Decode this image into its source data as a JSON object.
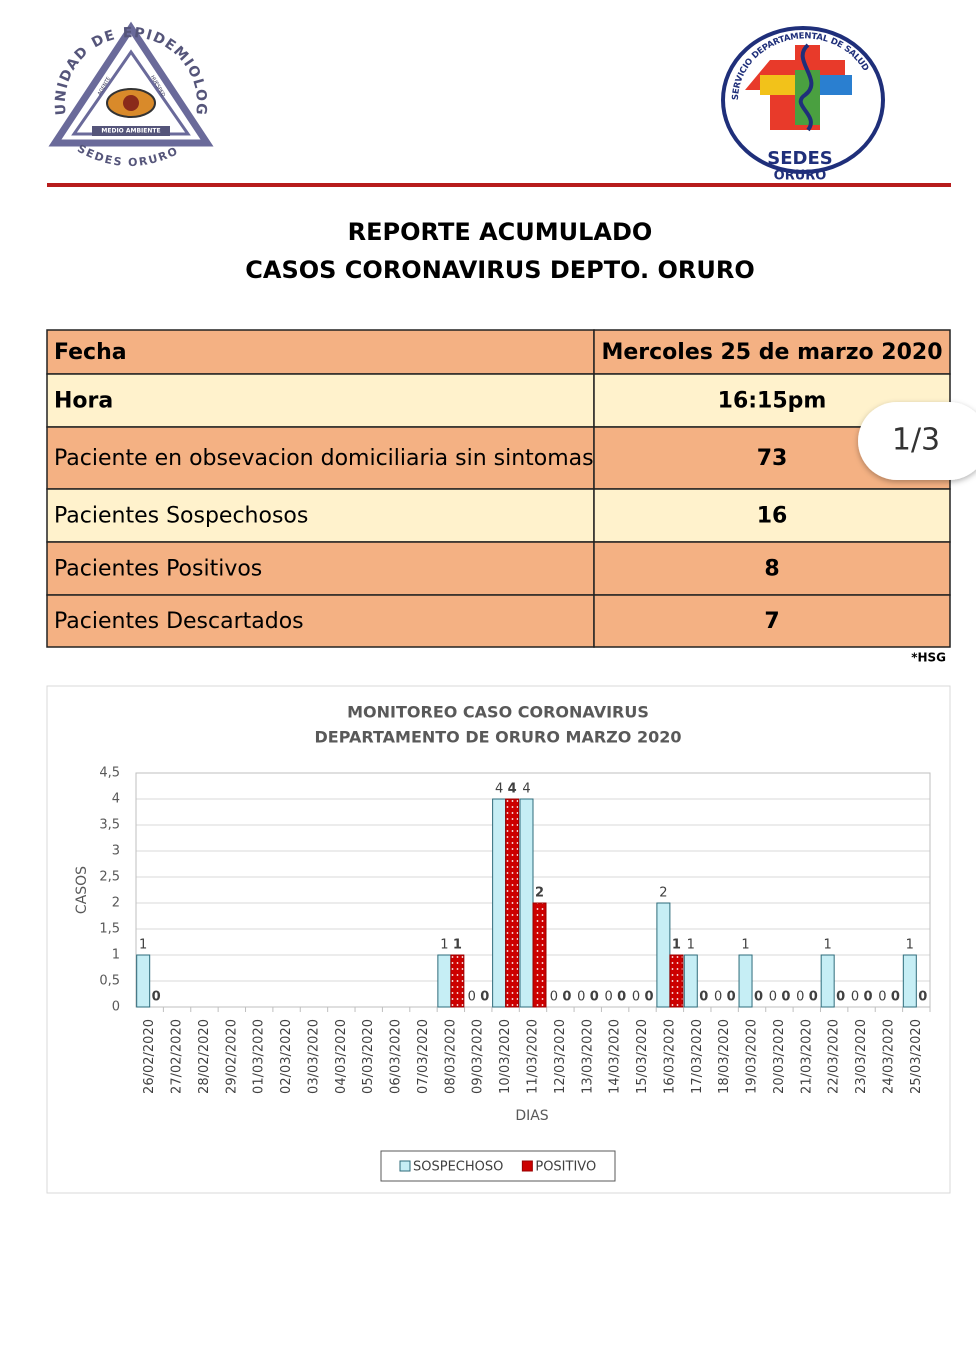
{
  "header": {
    "left_logo": {
      "ring_text": "UNIDAD DE EPIDEMIOLOGIA",
      "bottom_text": "SEDES ORURO",
      "band_text": "MEDIO AMBIENTE",
      "left_side": "AGENTE",
      "right_side": "HUESPED"
    },
    "right_logo": {
      "ring_text": "SERVICIO DEPARTAMENTAL DE SALUD",
      "name": "SEDES",
      "city": "ORURO"
    }
  },
  "title": [
    "REPORTE ACUMULADO",
    "CASOS CORONAVIRUS DEPTO. ORURO"
  ],
  "table": {
    "rows": [
      [
        "Fecha",
        "Mercoles 25 de marzo 2020"
      ],
      [
        "Hora",
        "16:15pm"
      ],
      [
        "Paciente en obsevacion domiciliaria sin sintomas",
        73
      ],
      [
        "Pacientes Sospechosos",
        16
      ],
      [
        "Pacientes Positivos",
        8
      ],
      [
        "Pacientes Descartados",
        7
      ]
    ]
  },
  "footnote": "*HSG",
  "page_indicator": "1/3",
  "chart_data": {
    "type": "bar",
    "title": "MONITOREO CASO CORONAVIRUS",
    "subtitle": "DEPARTAMENTO DE ORURO MARZO 2020",
    "x_label": "DIAS",
    "y_label": "CASOS",
    "categories": [
      "26/02/2020",
      "27/02/2020",
      "28/02/2020",
      "29/02/2020",
      "01/03/2020",
      "02/03/2020",
      "03/03/2020",
      "04/03/2020",
      "05/03/2020",
      "06/03/2020",
      "07/03/2020",
      "08/03/2020",
      "09/03/2020",
      "10/03/2020",
      "11/03/2020",
      "12/03/2020",
      "13/03/2020",
      "14/03/2020",
      "15/03/2020",
      "16/03/2020",
      "17/03/2020",
      "18/03/2020",
      "19/03/2020",
      "20/03/2020",
      "21/03/2020",
      "22/03/2020",
      "23/03/2020",
      "24/03/2020",
      "25/03/2020"
    ],
    "series": [
      {
        "name": "SOSPECHOSO",
        "color": "#c6eef5",
        "values": [
          1,
          null,
          null,
          null,
          null,
          null,
          null,
          null,
          null,
          null,
          null,
          1,
          0,
          4,
          4,
          0,
          0,
          0,
          0,
          2,
          1,
          0,
          1,
          0,
          0,
          1,
          0,
          0,
          1
        ]
      },
      {
        "name": "POSITIVO",
        "color": "#cc0000",
        "values": [
          0,
          null,
          null,
          null,
          null,
          null,
          null,
          null,
          null,
          null,
          null,
          1,
          0,
          4,
          2,
          0,
          0,
          0,
          0,
          1,
          0,
          0,
          0,
          0,
          0,
          0,
          0,
          0,
          0
        ]
      }
    ],
    "ylim": [
      0,
      4.5
    ],
    "yticks": [
      0,
      {
        "value": 0.5,
        "label": "0,5"
      },
      1,
      {
        "value": 1.5,
        "label": "1,5"
      },
      2,
      {
        "value": 2.5,
        "label": "2,5"
      },
      3,
      {
        "value": 3.5,
        "label": "3,5"
      },
      4,
      {
        "value": 4.5,
        "label": "4,5"
      }
    ],
    "grid": true,
    "legend": "bottom"
  }
}
